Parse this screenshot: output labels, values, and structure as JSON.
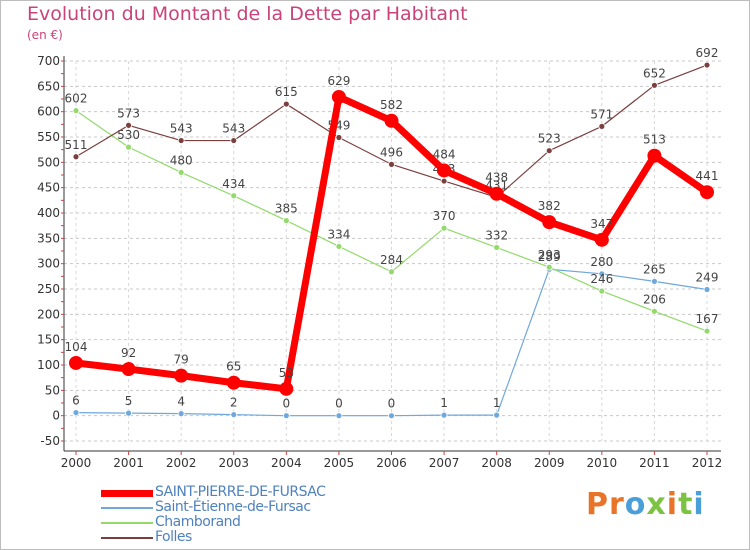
{
  "header": {
    "title": "Evolution du Montant de la Dette par Habitant",
    "subtitle": "(en €)"
  },
  "logo": {
    "text": "Proxiti",
    "colors": [
      "#e8742a",
      "#e8742a",
      "#4a9fd8",
      "#7cc243",
      "#e8742a",
      "#7cc243",
      "#4a9fd8"
    ]
  },
  "chart_data": {
    "type": "line",
    "title": "Evolution du Montant de la Dette par Habitant",
    "subtitle": "(en €)",
    "x": [
      "2000",
      "2001",
      "2002",
      "2003",
      "2004",
      "2005",
      "2006",
      "2007",
      "2008",
      "2009",
      "2010",
      "2011",
      "2012"
    ],
    "yticks": [
      "700",
      "650",
      "600",
      "550",
      "500",
      "450",
      "400",
      "350",
      "300",
      "250",
      "200",
      "150",
      "100",
      "50",
      "0",
      "-50"
    ],
    "ylim": [
      -50,
      700
    ],
    "grid": "horizontal dashed",
    "legend_position": "bottom-left",
    "series": [
      {
        "name": "SAINT-PIERRE-DE-FURSAC",
        "color": "#ff0000",
        "emphasis": true,
        "values": [
          104,
          92,
          79,
          65,
          53,
          629,
          582,
          484,
          438,
          382,
          347,
          513,
          441
        ],
        "labels": [
          "104",
          "92",
          "79",
          "65",
          "53",
          "629",
          "582",
          "484",
          "438",
          "382",
          "347",
          "513",
          "441"
        ]
      },
      {
        "name": "Saint-Étienne-de-Fursac",
        "color": "#6fa8dc",
        "emphasis": false,
        "values": [
          6,
          5,
          4,
          2,
          0,
          0,
          0,
          1,
          1,
          289,
          280,
          265,
          249
        ],
        "labels": [
          "6",
          "5",
          "4",
          "2",
          "0",
          "0",
          "0",
          "1",
          "1",
          "289",
          "280",
          "265",
          "249"
        ]
      },
      {
        "name": "Chamborand",
        "color": "#93d96b",
        "emphasis": false,
        "values": [
          602,
          530,
          480,
          434,
          385,
          334,
          284,
          370,
          332,
          293,
          246,
          206,
          167
        ],
        "labels": [
          "602",
          "530",
          "480",
          "434",
          "385",
          "334",
          "284",
          "370",
          "332",
          "293",
          "246",
          "206",
          "167"
        ]
      },
      {
        "name": "Folles",
        "color": "#7b3f3f",
        "emphasis": false,
        "values": [
          511,
          573,
          543,
          543,
          615,
          549,
          496,
          463,
          431,
          523,
          571,
          652,
          692
        ],
        "labels": [
          "511",
          "573",
          "543",
          "543",
          "615",
          "549",
          "496",
          "463",
          "431",
          "523",
          "571",
          "652",
          "692"
        ]
      }
    ]
  }
}
